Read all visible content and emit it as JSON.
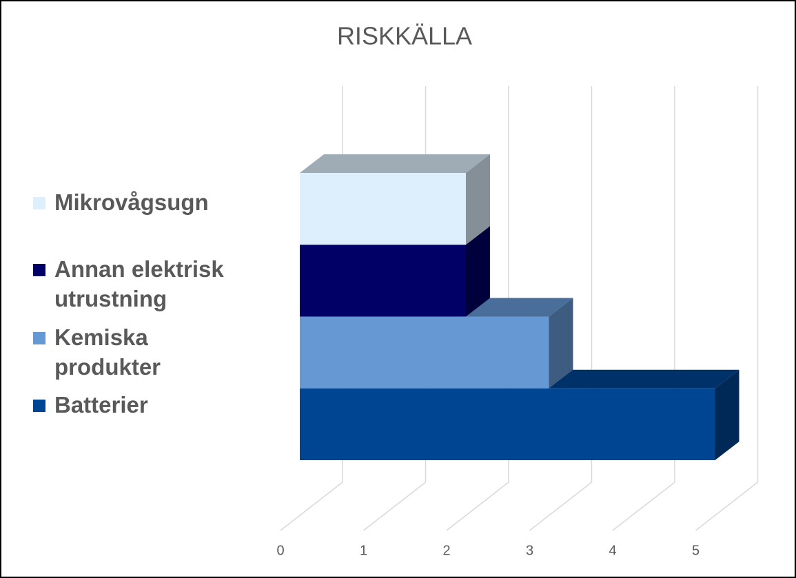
{
  "chart_data": {
    "type": "bar3d",
    "title": "RISKKÄLLA",
    "categories": [
      "Batterier",
      "Kemiska produkter",
      "Annan elektrisk utrustning",
      "Mikrovågsugn"
    ],
    "values": [
      5,
      3,
      2,
      2
    ],
    "colors": [
      "#004592",
      "#6699d4",
      "#000066",
      "#ddeefc"
    ],
    "xlim": [
      0,
      5
    ],
    "xticks": [
      0,
      1,
      2,
      3,
      4,
      5
    ],
    "grid": true
  }
}
